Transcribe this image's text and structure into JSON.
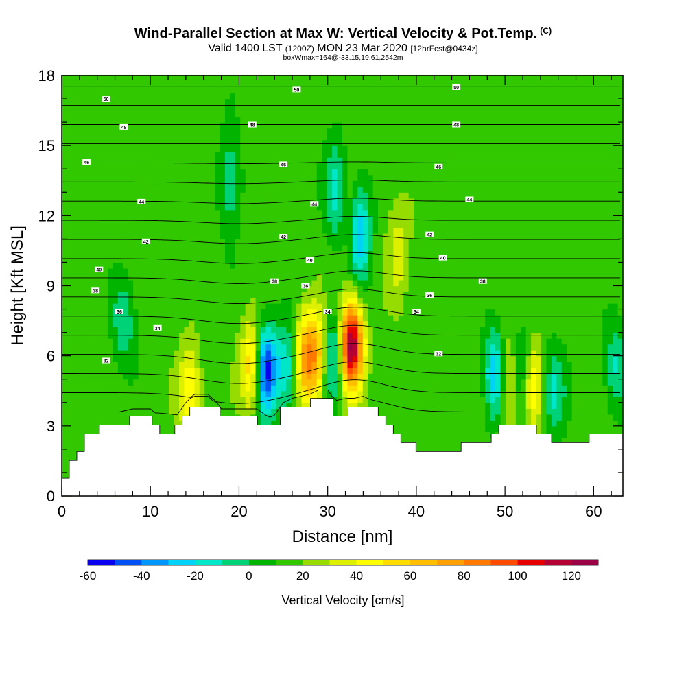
{
  "header": {
    "title": "Wind-Parallel Section at Max W: Vertical Velocity & Pot.Temp.",
    "copyright": "(C)",
    "valid_prefix": "Valid 1400 LST",
    "valid_utc": "(1200Z)",
    "valid_date": "MON 23 Mar 2020",
    "forecast": "[12hrFcst@0434z]",
    "box_info": "boxWmax=164@-33.15,19.61,2542m"
  },
  "chart_data": {
    "type": "heatmap",
    "xlabel": "Distance [nm]",
    "ylabel": "Height [Kft MSL]",
    "xlim": [
      0,
      63.3
    ],
    "ylim": [
      0,
      18
    ],
    "xticks": [
      0,
      10,
      20,
      30,
      40,
      50,
      60
    ],
    "yticks": [
      0,
      3,
      6,
      9,
      12,
      15,
      18
    ],
    "colorbar": {
      "label": "Vertical Velocity [cm/s]",
      "min": -60,
      "max": 130,
      "step": 10,
      "tick_labels": [
        -60,
        -40,
        -20,
        0,
        20,
        40,
        60,
        80,
        100,
        120
      ],
      "colors": [
        "#0a00f0",
        "#0050f5",
        "#0096fa",
        "#00d2fa",
        "#00e6c8",
        "#00d278",
        "#00b400",
        "#32c800",
        "#96dc00",
        "#dcf000",
        "#ffff00",
        "#ffdc00",
        "#ffbe00",
        "#ffa000",
        "#ff7800",
        "#ff4b00",
        "#e60000",
        "#b40032",
        "#9b0046"
      ]
    },
    "background_w": 15,
    "updrafts_w": [
      {
        "x": 14.4,
        "z": 4.6,
        "w": 50
      },
      {
        "x": 21.5,
        "z": 5.6,
        "w": 65
      },
      {
        "x": 27.5,
        "z": 5.9,
        "w": 75
      },
      {
        "x": 29.1,
        "z": 6.0,
        "w": 68
      },
      {
        "x": 32.7,
        "z": 6.5,
        "w": 125
      },
      {
        "x": 50.5,
        "z": 5.0,
        "w": 60
      },
      {
        "x": 53.0,
        "z": 4.8,
        "w": 55
      },
      {
        "x": 32.5,
        "z": 12.0,
        "w": 35
      },
      {
        "x": 38.0,
        "z": 10.5,
        "w": 35
      }
    ],
    "downdrafts_w": [
      {
        "x": 23.0,
        "z": 5.4,
        "w": -58
      },
      {
        "x": 30.3,
        "z": 6.0,
        "w": -35
      },
      {
        "x": 25.5,
        "z": 5.5,
        "w": -20
      },
      {
        "x": 49.0,
        "z": 5.2,
        "w": -35
      },
      {
        "x": 51.8,
        "z": 5.2,
        "w": -25
      },
      {
        "x": 55.5,
        "z": 4.5,
        "w": -15
      },
      {
        "x": 33.5,
        "z": 11.3,
        "w": -35
      },
      {
        "x": 31.0,
        "z": 13.0,
        "w": -15
      },
      {
        "x": 19.0,
        "z": 13.5,
        "w": -10
      },
      {
        "x": 7.0,
        "z": 7.5,
        "w": -10
      },
      {
        "x": 62.5,
        "z": 5.5,
        "w": -12
      }
    ],
    "terrain_height_kft": [
      [
        0,
        0.3
      ],
      [
        0.5,
        0.7
      ],
      [
        1.0,
        1.3
      ],
      [
        1.5,
        1.6
      ],
      [
        2.0,
        1.9
      ],
      [
        2.5,
        2.2
      ],
      [
        3.0,
        2.5
      ],
      [
        3.5,
        2.7
      ],
      [
        4.0,
        2.9
      ],
      [
        5.0,
        3.0
      ],
      [
        6.0,
        3.1
      ],
      [
        7.0,
        3.2
      ],
      [
        8.0,
        3.3
      ],
      [
        10.0,
        3.3
      ],
      [
        11.0,
        3.0
      ],
      [
        11.5,
        2.8
      ],
      [
        12.0,
        2.7
      ],
      [
        12.5,
        2.9
      ],
      [
        13.0,
        3.0
      ],
      [
        13.5,
        3.3
      ],
      [
        14.0,
        3.6
      ],
      [
        14.5,
        3.8
      ],
      [
        15.0,
        3.9
      ],
      [
        16.5,
        3.9
      ],
      [
        17.0,
        3.7
      ],
      [
        17.5,
        3.6
      ],
      [
        18.0,
        3.3
      ],
      [
        22.0,
        3.3
      ],
      [
        23.0,
        3.0
      ],
      [
        23.5,
        2.9
      ],
      [
        24.0,
        3.0
      ],
      [
        24.5,
        3.3
      ],
      [
        25.0,
        3.6
      ],
      [
        26.0,
        3.8
      ],
      [
        27.0,
        3.9
      ],
      [
        28.0,
        4.0
      ],
      [
        29.0,
        4.2
      ],
      [
        30.0,
        4.2
      ],
      [
        30.5,
        3.9
      ],
      [
        31.0,
        3.6
      ],
      [
        31.5,
        3.3
      ],
      [
        32.0,
        3.6
      ],
      [
        33.0,
        3.8
      ],
      [
        34.0,
        3.9
      ],
      [
        35.0,
        3.7
      ],
      [
        36.0,
        3.4
      ],
      [
        37.0,
        3.0
      ],
      [
        38.0,
        2.7
      ],
      [
        39.0,
        2.3
      ],
      [
        40.0,
        2.1
      ],
      [
        42.0,
        2.0
      ],
      [
        44.0,
        2.0
      ],
      [
        45.0,
        2.1
      ],
      [
        46.0,
        2.3
      ],
      [
        48.0,
        2.4
      ],
      [
        49.0,
        2.6
      ],
      [
        50.0,
        3.0
      ],
      [
        52.0,
        3.0
      ],
      [
        53.0,
        2.9
      ],
      [
        54.0,
        2.6
      ],
      [
        55.0,
        2.5
      ],
      [
        56.0,
        2.3
      ],
      [
        59.0,
        2.3
      ],
      [
        60.0,
        2.6
      ],
      [
        63.3,
        2.6
      ]
    ],
    "theta_contour_labels": [
      {
        "text": "50",
        "x": 5.0,
        "z": 17.0
      },
      {
        "text": "50",
        "x": 26.5,
        "z": 17.4
      },
      {
        "text": "50",
        "x": 44.5,
        "z": 17.5
      },
      {
        "text": "48",
        "x": 7.0,
        "z": 15.8
      },
      {
        "text": "48",
        "x": 21.5,
        "z": 15.9
      },
      {
        "text": "48",
        "x": 44.5,
        "z": 15.9
      },
      {
        "text": "46",
        "x": 2.8,
        "z": 14.3
      },
      {
        "text": "46",
        "x": 25.0,
        "z": 14.2
      },
      {
        "text": "46",
        "x": 42.5,
        "z": 14.1
      },
      {
        "text": "44",
        "x": 9.0,
        "z": 12.6
      },
      {
        "text": "44",
        "x": 28.5,
        "z": 12.5
      },
      {
        "text": "44",
        "x": 46.0,
        "z": 12.7
      },
      {
        "text": "42",
        "x": 9.5,
        "z": 10.9
      },
      {
        "text": "42",
        "x": 25.0,
        "z": 11.1
      },
      {
        "text": "42",
        "x": 41.5,
        "z": 11.2
      },
      {
        "text": "40",
        "x": 4.2,
        "z": 9.7
      },
      {
        "text": "40",
        "x": 28.0,
        "z": 10.1
      },
      {
        "text": "40",
        "x": 43.0,
        "z": 10.2
      },
      {
        "text": "38",
        "x": 3.8,
        "z": 8.8
      },
      {
        "text": "38",
        "x": 24.0,
        "z": 9.2
      },
      {
        "text": "38",
        "x": 47.5,
        "z": 9.2
      },
      {
        "text": "36",
        "x": 6.5,
        "z": 7.9
      },
      {
        "text": "36",
        "x": 27.5,
        "z": 9.0
      },
      {
        "text": "36",
        "x": 41.5,
        "z": 8.6
      },
      {
        "text": "34",
        "x": 10.8,
        "z": 7.2
      },
      {
        "text": "34",
        "x": 30.0,
        "z": 7.9
      },
      {
        "text": "34",
        "x": 40.0,
        "z": 7.9
      },
      {
        "text": "32",
        "x": 5.0,
        "z": 5.8
      },
      {
        "text": "32",
        "x": 42.5,
        "z": 6.1
      }
    ]
  }
}
